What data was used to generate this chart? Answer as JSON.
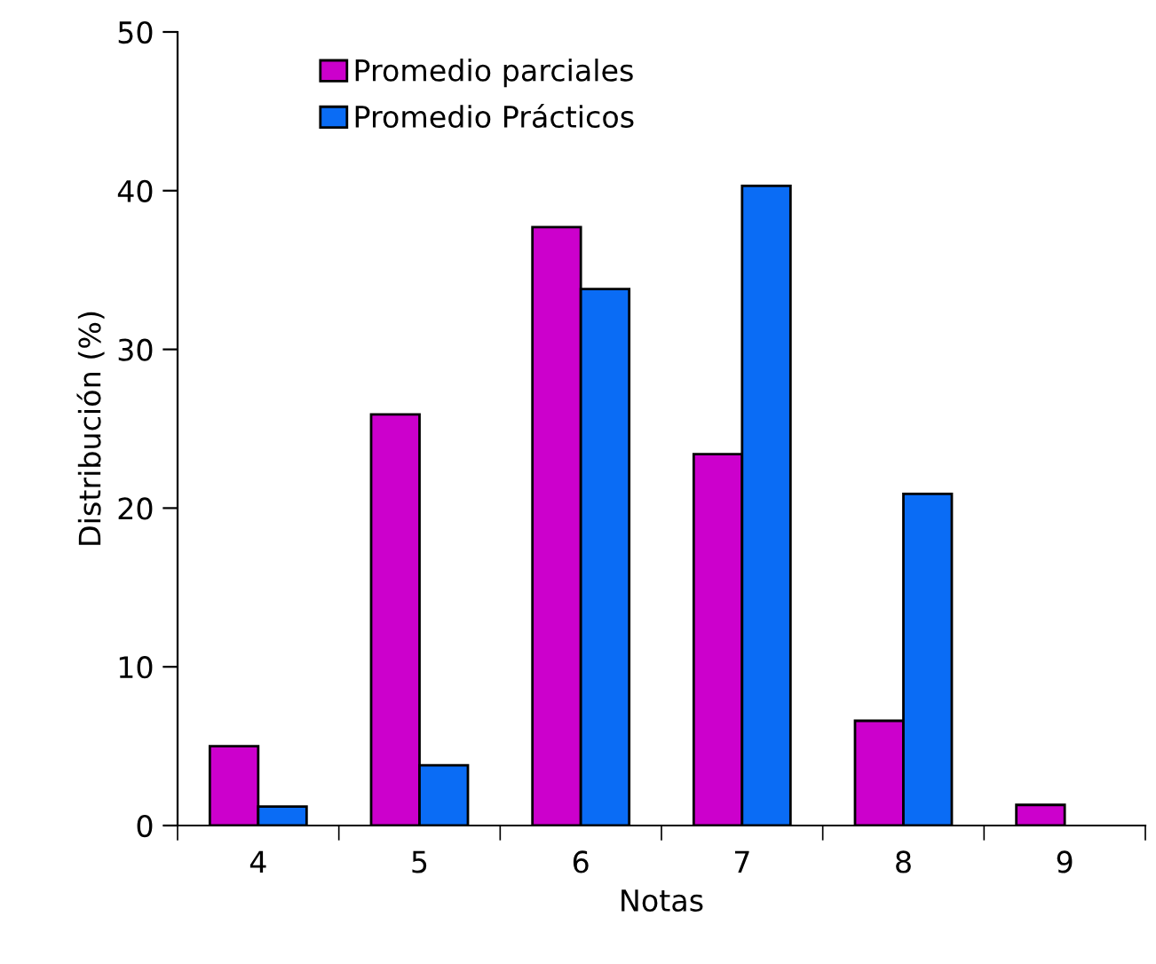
{
  "chart_data": {
    "type": "bar",
    "xlabel": "Notas",
    "ylabel": "Distribución (%)",
    "categories": [
      "4",
      "5",
      "6",
      "7",
      "8",
      "9"
    ],
    "series": [
      {
        "name": "Promedio parciales",
        "color": "#cc00cc",
        "values": [
          5.0,
          25.9,
          37.7,
          23.4,
          6.6,
          1.3
        ]
      },
      {
        "name": "Promedio Prácticos",
        "color": "#0a6cf5",
        "values": [
          1.2,
          3.8,
          33.8,
          40.3,
          20.9,
          null
        ]
      }
    ],
    "ylim": [
      0,
      50
    ],
    "yticks": [
      0,
      10,
      20,
      30,
      40,
      50
    ],
    "grid": false,
    "legend": "top left"
  }
}
